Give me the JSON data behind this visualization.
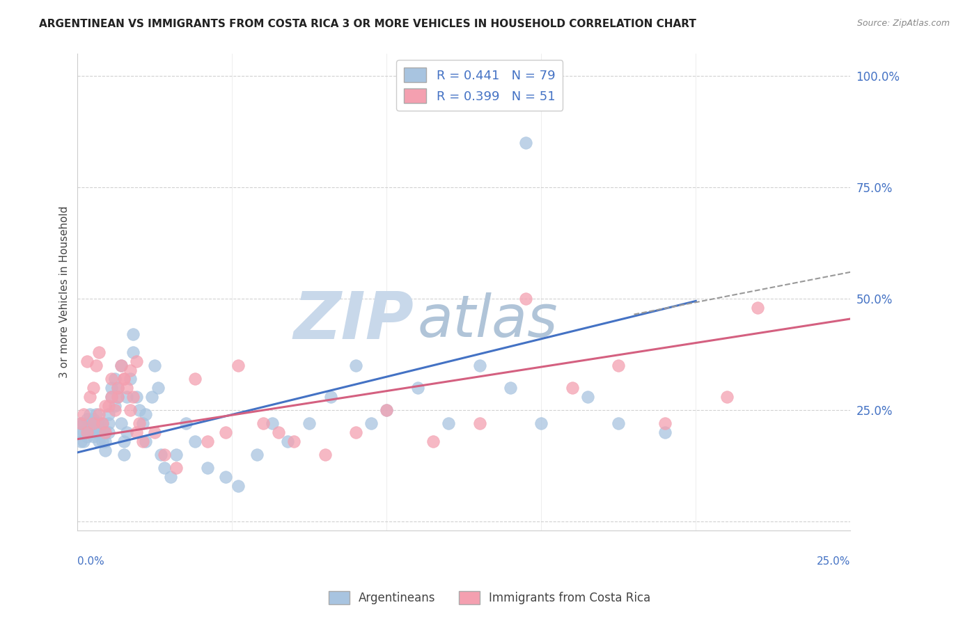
{
  "title": "ARGENTINEAN VS IMMIGRANTS FROM COSTA RICA 3 OR MORE VEHICLES IN HOUSEHOLD CORRELATION CHART",
  "source": "Source: ZipAtlas.com",
  "ylabel": "3 or more Vehicles in Household",
  "legend_argentineans": "Argentineans",
  "legend_costarica": "Immigrants from Costa Rica",
  "R_blue": 0.441,
  "N_blue": 79,
  "R_pink": 0.399,
  "N_pink": 51,
  "blue_color": "#a8c4e0",
  "pink_color": "#f4a0b0",
  "blue_line_color": "#4472c4",
  "pink_line_color": "#d46080",
  "watermark_zip_color": "#ccd8e8",
  "watermark_atlas_color": "#b8c8dc",
  "background_color": "#ffffff",
  "grid_color": "#cccccc",
  "xlim": [
    0.0,
    0.25
  ],
  "ylim": [
    -0.02,
    1.05
  ],
  "blue_scatter_x": [
    0.001,
    0.001,
    0.001,
    0.002,
    0.002,
    0.002,
    0.003,
    0.003,
    0.003,
    0.004,
    0.004,
    0.004,
    0.005,
    0.005,
    0.005,
    0.006,
    0.006,
    0.006,
    0.007,
    0.007,
    0.007,
    0.008,
    0.008,
    0.008,
    0.009,
    0.009,
    0.009,
    0.01,
    0.01,
    0.01,
    0.011,
    0.011,
    0.012,
    0.012,
    0.013,
    0.013,
    0.014,
    0.014,
    0.015,
    0.015,
    0.016,
    0.016,
    0.017,
    0.018,
    0.018,
    0.019,
    0.02,
    0.021,
    0.022,
    0.022,
    0.024,
    0.025,
    0.026,
    0.027,
    0.028,
    0.03,
    0.032,
    0.035,
    0.038,
    0.042,
    0.048,
    0.052,
    0.058,
    0.063,
    0.068,
    0.075,
    0.082,
    0.09,
    0.095,
    0.1,
    0.11,
    0.12,
    0.13,
    0.14,
    0.15,
    0.165,
    0.175,
    0.145,
    0.19
  ],
  "blue_scatter_y": [
    0.2,
    0.22,
    0.18,
    0.22,
    0.2,
    0.18,
    0.21,
    0.19,
    0.23,
    0.2,
    0.22,
    0.24,
    0.21,
    0.19,
    0.23,
    0.2,
    0.22,
    0.24,
    0.2,
    0.18,
    0.22,
    0.2,
    0.22,
    0.18,
    0.2,
    0.18,
    0.16,
    0.22,
    0.2,
    0.24,
    0.28,
    0.3,
    0.26,
    0.32,
    0.28,
    0.3,
    0.35,
    0.22,
    0.18,
    0.15,
    0.2,
    0.28,
    0.32,
    0.38,
    0.42,
    0.28,
    0.25,
    0.22,
    0.18,
    0.24,
    0.28,
    0.35,
    0.3,
    0.15,
    0.12,
    0.1,
    0.15,
    0.22,
    0.18,
    0.12,
    0.1,
    0.08,
    0.15,
    0.22,
    0.18,
    0.22,
    0.28,
    0.35,
    0.22,
    0.25,
    0.3,
    0.22,
    0.35,
    0.3,
    0.22,
    0.28,
    0.22,
    0.85,
    0.2
  ],
  "pink_scatter_x": [
    0.001,
    0.002,
    0.003,
    0.004,
    0.005,
    0.006,
    0.007,
    0.008,
    0.009,
    0.01,
    0.011,
    0.012,
    0.013,
    0.014,
    0.015,
    0.016,
    0.017,
    0.018,
    0.019,
    0.02,
    0.003,
    0.005,
    0.007,
    0.009,
    0.011,
    0.013,
    0.015,
    0.017,
    0.019,
    0.021,
    0.025,
    0.028,
    0.032,
    0.038,
    0.042,
    0.048,
    0.052,
    0.06,
    0.065,
    0.07,
    0.08,
    0.09,
    0.1,
    0.115,
    0.13,
    0.145,
    0.16,
    0.175,
    0.19,
    0.21,
    0.22
  ],
  "pink_scatter_y": [
    0.22,
    0.24,
    0.36,
    0.28,
    0.3,
    0.35,
    0.38,
    0.22,
    0.2,
    0.26,
    0.32,
    0.25,
    0.28,
    0.35,
    0.32,
    0.3,
    0.25,
    0.28,
    0.2,
    0.22,
    0.2,
    0.22,
    0.24,
    0.26,
    0.28,
    0.3,
    0.32,
    0.34,
    0.36,
    0.18,
    0.2,
    0.15,
    0.12,
    0.32,
    0.18,
    0.2,
    0.35,
    0.22,
    0.2,
    0.18,
    0.15,
    0.2,
    0.25,
    0.18,
    0.22,
    0.5,
    0.3,
    0.35,
    0.22,
    0.28,
    0.48
  ],
  "blue_line_x": [
    0.0,
    0.2
  ],
  "blue_line_y": [
    0.155,
    0.495
  ],
  "pink_line_x": [
    0.0,
    0.25
  ],
  "pink_line_y": [
    0.185,
    0.455
  ],
  "dashed_line_x": [
    0.18,
    0.25
  ],
  "dashed_line_y": [
    0.465,
    0.56
  ]
}
